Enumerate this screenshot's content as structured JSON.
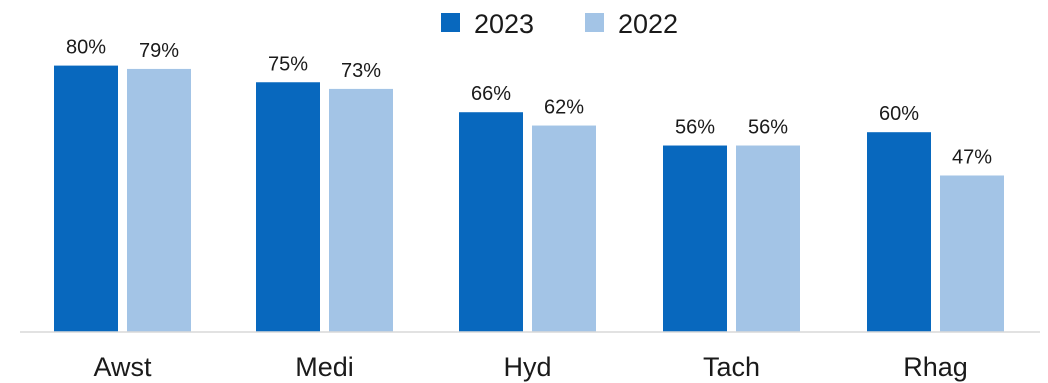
{
  "chart_data": {
    "type": "bar",
    "categories": [
      "Awst",
      "Medi",
      "Hyd",
      "Tach",
      "Rhag"
    ],
    "series": [
      {
        "name": "2023",
        "color": "#0868BE",
        "values": [
          80,
          75,
          66,
          56,
          60
        ],
        "labels": [
          "80%",
          "75%",
          "66%",
          "56%",
          "60%"
        ]
      },
      {
        "name": "2022",
        "color": "#A3C4E6",
        "values": [
          79,
          73,
          62,
          56,
          47
        ],
        "labels": [
          "79%",
          "73%",
          "62%",
          "56%",
          "47%"
        ]
      }
    ],
    "unit": "%",
    "ylim": [
      0,
      100
    ],
    "grid": false,
    "legend_position": "top-center",
    "title": "",
    "xlabel": "",
    "ylabel": ""
  }
}
